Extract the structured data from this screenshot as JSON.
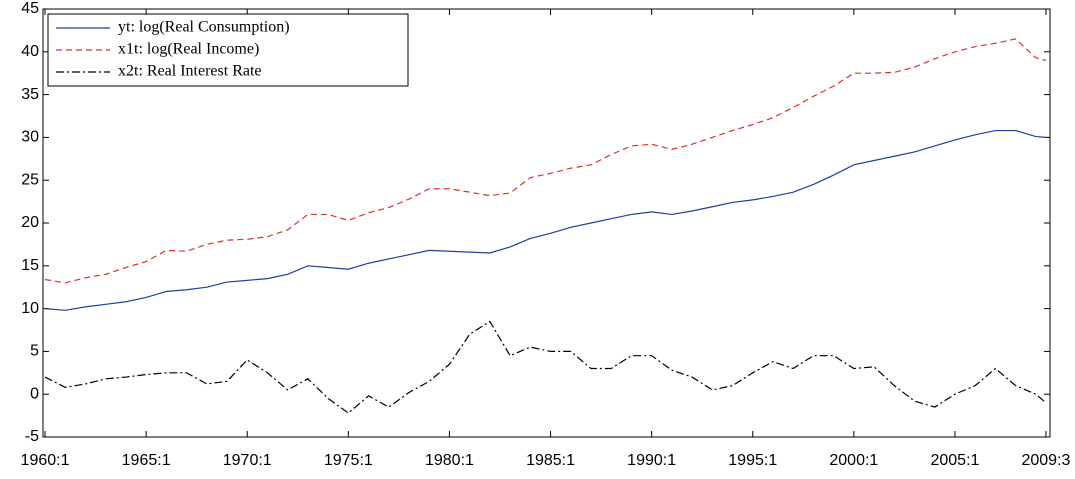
{
  "chart_data": {
    "type": "line",
    "x": [
      1960,
      1961,
      1962,
      1963,
      1964,
      1965,
      1966,
      1967,
      1968,
      1969,
      1970,
      1971,
      1972,
      1973,
      1974,
      1975,
      1976,
      1977,
      1978,
      1979,
      1980,
      1981,
      1982,
      1983,
      1984,
      1985,
      1986,
      1987,
      1988,
      1989,
      1990,
      1991,
      1992,
      1993,
      1994,
      1995,
      1996,
      1997,
      1998,
      1999,
      2000,
      2001,
      2002,
      2003,
      2004,
      2005,
      2006,
      2007,
      2008,
      2009,
      2009.5
    ],
    "series": [
      {
        "name": "yt: log(Real Consumption)",
        "color": "#1f3f9f",
        "dash": "none",
        "values": [
          10,
          9.8,
          10.2,
          10.5,
          10.8,
          11.3,
          12,
          12.2,
          12.5,
          13.1,
          13.3,
          13.5,
          14,
          15,
          14.8,
          14.6,
          15.3,
          15.8,
          16.3,
          16.8,
          16.7,
          16.6,
          16.5,
          17.2,
          18.2,
          18.8,
          19.5,
          20,
          20.5,
          21,
          21.3,
          21,
          21.4,
          21.9,
          22.4,
          22.7,
          23.1,
          23.6,
          24.5,
          25.6,
          26.8,
          27.3,
          27.8,
          28.3,
          29,
          29.7,
          30.3,
          30.8,
          30.8,
          30.1,
          30
        ]
      },
      {
        "name": "x1t: log(Real Income)",
        "color": "#e0302a",
        "dash": "6,4",
        "values": [
          13.4,
          13,
          13.6,
          14,
          14.8,
          15.5,
          16.8,
          16.7,
          17.5,
          18,
          18.1,
          18.4,
          19.2,
          21,
          21,
          20.3,
          21.2,
          21.8,
          22.8,
          24,
          24,
          23.6,
          23.2,
          23.5,
          25.3,
          25.8,
          26.4,
          26.8,
          28,
          29,
          29.2,
          28.6,
          29.2,
          30,
          30.8,
          31.5,
          32.3,
          33.5,
          34.8,
          36,
          37.5,
          37.5,
          37.6,
          38.2,
          39.2,
          40,
          40.6,
          41,
          41.5,
          39.3,
          39
        ]
      },
      {
        "name": "x2t: Real Interest Rate",
        "color": "#000000",
        "dash": "8,3,2,3",
        "values": [
          2,
          0.8,
          1.2,
          1.8,
          2,
          2.3,
          2.5,
          2.5,
          1.2,
          1.5,
          4,
          2.5,
          0.5,
          1.8,
          -0.5,
          -2.2,
          -0.2,
          -1.5,
          0.2,
          1.5,
          3.5,
          7,
          8.5,
          4.5,
          5.5,
          5,
          5,
          3,
          3,
          4.5,
          4.5,
          2.8,
          2,
          0.5,
          1,
          2.5,
          3.8,
          3,
          4.5,
          4.5,
          3,
          3.2,
          1,
          -0.8,
          -1.5,
          0,
          1,
          3,
          1,
          0,
          -1
        ]
      }
    ],
    "xlim": [
      1959.9,
      2009.7
    ],
    "xticks": [
      {
        "value": 1960,
        "label": "1960:1"
      },
      {
        "value": 1965,
        "label": "1965:1"
      },
      {
        "value": 1970,
        "label": "1970:1"
      },
      {
        "value": 1975,
        "label": "1975:1"
      },
      {
        "value": 1980,
        "label": "1980:1"
      },
      {
        "value": 1985,
        "label": "1985:1"
      },
      {
        "value": 1990,
        "label": "1990:1"
      },
      {
        "value": 1995,
        "label": "1995:1"
      },
      {
        "value": 2000,
        "label": "2000:1"
      },
      {
        "value": 2005,
        "label": "2005:1"
      },
      {
        "value": 2009.5,
        "label": "2009:3"
      }
    ],
    "ylim": [
      -5,
      45
    ],
    "yticks": [
      -5,
      0,
      5,
      10,
      15,
      20,
      25,
      30,
      35,
      40,
      45
    ],
    "legend": "upper left"
  }
}
